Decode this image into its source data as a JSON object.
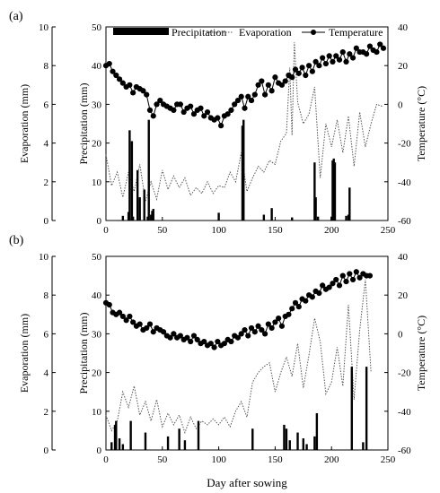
{
  "chart_data": [
    {
      "type": "bar",
      "panel_label": "(a)",
      "left_outer_axis": {
        "label": "Evaporation (mm)",
        "ticks": [
          0,
          2,
          4,
          6,
          8,
          10
        ],
        "ylim": [
          0,
          10
        ]
      },
      "left_inner_axis": {
        "label": "Precipitation (mm)",
        "ticks": [
          0,
          10,
          20,
          30,
          40,
          50
        ],
        "ylim": [
          0,
          50
        ]
      },
      "right_axis": {
        "label": "Temperature (°C)",
        "ticks": [
          -60,
          -40,
          -20,
          0,
          20,
          40
        ],
        "ylim": [
          -60,
          40
        ]
      },
      "x_axis": {
        "label": "",
        "ticks": [
          0,
          50,
          100,
          150,
          200,
          250
        ],
        "xlim": [
          0,
          250
        ]
      },
      "legend": {
        "placement": "top",
        "entries": [
          "Precipitation",
          "Evaporation",
          "Temperature"
        ]
      },
      "series": [
        {
          "name": "Precipitation",
          "kind": "bar",
          "axis": "precipitation",
          "x": [
            15,
            20,
            21,
            23,
            24,
            28,
            30,
            34,
            37,
            38,
            40,
            41,
            42,
            100,
            121,
            122,
            140,
            147,
            165,
            185,
            186,
            188,
            200,
            201,
            202,
            203,
            213,
            215,
            216
          ],
          "values": [
            1.2,
            2.2,
            23.3,
            20.5,
            1.0,
            13,
            6,
            8,
            1,
            26,
            1.5,
            2.5,
            3,
            2,
            24.5,
            26,
            1.5,
            3.2,
            0.8,
            15,
            6,
            1,
            1,
            15.5,
            16,
            15,
            1.2,
            1.5,
            8.5
          ]
        },
        {
          "name": "Evaporation",
          "kind": "dotted-line",
          "axis": "evaporation",
          "x": [
            0,
            5,
            10,
            15,
            20,
            25,
            30,
            35,
            40,
            45,
            50,
            55,
            60,
            65,
            70,
            75,
            80,
            85,
            90,
            95,
            100,
            105,
            110,
            115,
            120,
            125,
            130,
            135,
            140,
            145,
            150,
            155,
            160,
            163,
            165,
            167,
            170,
            175,
            180,
            185,
            190,
            195,
            200,
            205,
            210,
            215,
            220,
            225,
            230,
            235,
            240,
            245
          ],
          "values": [
            3.4,
            1.8,
            2.5,
            1.2,
            2.5,
            1.5,
            2.9,
            1.0,
            2.0,
            1.1,
            2.6,
            1.6,
            2.3,
            1.7,
            2.2,
            1.3,
            1.7,
            1.4,
            2.0,
            1.4,
            1.8,
            1.7,
            2.5,
            2.0,
            3.5,
            1.5,
            2.2,
            2.8,
            2.5,
            3.1,
            2.9,
            4.1,
            4.5,
            7.9,
            4.4,
            9.2,
            6.1,
            5.0,
            5.5,
            6.9,
            2.2,
            5.0,
            3.8,
            5.2,
            3.5,
            5.4,
            2.8,
            5.6,
            3.8,
            5.0,
            6.0,
            5.9
          ]
        },
        {
          "name": "Temperature",
          "kind": "line-markers",
          "axis": "temperature",
          "x": [
            0,
            3,
            6,
            9,
            12,
            15,
            18,
            21,
            24,
            27,
            30,
            33,
            36,
            39,
            42,
            45,
            48,
            51,
            54,
            57,
            60,
            63,
            66,
            69,
            72,
            75,
            78,
            81,
            84,
            87,
            90,
            93,
            96,
            99,
            102,
            105,
            108,
            111,
            114,
            117,
            120,
            123,
            126,
            129,
            132,
            135,
            138,
            141,
            144,
            147,
            150,
            153,
            156,
            159,
            162,
            165,
            168,
            171,
            174,
            177,
            180,
            183,
            186,
            189,
            192,
            195,
            198,
            201,
            204,
            207,
            210,
            213,
            216,
            219,
            222,
            225,
            228,
            231,
            234,
            237,
            240,
            243,
            246
          ],
          "values": [
            20,
            21,
            17,
            15,
            13,
            11,
            9,
            10,
            6,
            9,
            8,
            7,
            5,
            -3,
            -6,
            0,
            2,
            0,
            -1,
            -2,
            -3,
            0,
            0,
            -4,
            -2,
            -1,
            -5,
            -3,
            -2,
            -6,
            -4,
            -7,
            -8,
            -7,
            -11,
            -6,
            -5,
            -3,
            0,
            2,
            4,
            -2,
            4,
            2,
            5,
            10,
            12,
            5,
            10,
            7,
            14,
            11,
            10,
            12,
            15,
            14,
            18,
            16,
            19,
            15,
            20,
            17,
            22,
            20,
            24,
            21,
            25,
            22,
            25,
            23,
            27,
            22,
            26,
            24,
            29,
            27,
            27,
            26,
            30,
            28,
            27,
            31,
            29
          ]
        }
      ]
    },
    {
      "type": "bar",
      "panel_label": "(b)",
      "left_outer_axis": {
        "label": "Evaporation (mm)",
        "ticks": [
          0,
          2,
          4,
          6,
          8,
          10
        ],
        "ylim": [
          0,
          10
        ]
      },
      "left_inner_axis": {
        "label": "Precipitation (mm)",
        "ticks": [
          0,
          10,
          20,
          30,
          40,
          50
        ],
        "ylim": [
          0,
          50
        ]
      },
      "right_axis": {
        "label": "Temperature (°C)",
        "ticks": [
          -60,
          -40,
          -20,
          0,
          20,
          40
        ],
        "ylim": [
          -60,
          40
        ]
      },
      "x_axis": {
        "label": "Day after sowing",
        "ticks": [
          0,
          50,
          100,
          150,
          200,
          250
        ],
        "xlim": [
          0,
          250
        ]
      },
      "series": [
        {
          "name": "Precipitation",
          "kind": "bar",
          "axis": "precipitation",
          "x": [
            5,
            8,
            9,
            12,
            15,
            22,
            35,
            55,
            65,
            70,
            82,
            130,
            158,
            160,
            163,
            170,
            175,
            178,
            185,
            187,
            218,
            228,
            231
          ],
          "values": [
            2,
            6.5,
            7.5,
            3,
            1.5,
            7.5,
            4.5,
            3.5,
            5.5,
            2.5,
            7.5,
            5.5,
            6.5,
            5.5,
            2.5,
            4.5,
            3,
            1.5,
            3.5,
            9.5,
            21.5,
            2,
            21.5
          ]
        },
        {
          "name": "Evaporation",
          "kind": "dotted-line",
          "axis": "evaporation",
          "x": [
            0,
            5,
            10,
            15,
            20,
            25,
            30,
            35,
            40,
            45,
            50,
            55,
            60,
            65,
            70,
            75,
            80,
            85,
            90,
            95,
            100,
            105,
            110,
            115,
            120,
            125,
            130,
            135,
            140,
            145,
            150,
            155,
            160,
            165,
            170,
            175,
            180,
            185,
            190,
            195,
            200,
            205,
            210,
            215,
            220,
            225,
            230,
            235
          ],
          "values": [
            1.8,
            1.0,
            1.5,
            3.0,
            2.2,
            3.3,
            1.8,
            2.5,
            1.5,
            2.6,
            1.2,
            1.9,
            1.3,
            1.8,
            0.9,
            1.7,
            1.1,
            1.5,
            1.3,
            1.6,
            1.3,
            1.7,
            1.2,
            2.0,
            2.5,
            1.7,
            3.5,
            4.0,
            4.3,
            4.5,
            3.0,
            4.0,
            4.8,
            3.8,
            5.5,
            3.2,
            4.9,
            6.8,
            5.6,
            2.9,
            3.5,
            5.3,
            3.3,
            7.5,
            2.6,
            6.2,
            8.8,
            4.0
          ]
        },
        {
          "name": "Temperature",
          "kind": "line-markers",
          "axis": "temperature",
          "x": [
            0,
            3,
            6,
            9,
            12,
            15,
            18,
            21,
            24,
            27,
            30,
            33,
            36,
            39,
            42,
            45,
            48,
            51,
            54,
            57,
            60,
            63,
            66,
            69,
            72,
            75,
            78,
            81,
            84,
            87,
            90,
            93,
            96,
            99,
            102,
            105,
            108,
            111,
            114,
            117,
            120,
            123,
            126,
            129,
            132,
            135,
            138,
            141,
            144,
            147,
            150,
            153,
            156,
            159,
            162,
            165,
            168,
            171,
            174,
            177,
            180,
            183,
            186,
            189,
            192,
            195,
            198,
            201,
            204,
            207,
            210,
            213,
            216,
            219,
            222,
            225,
            228,
            231,
            234
          ],
          "values": [
            16,
            15,
            11,
            10,
            11,
            9,
            7,
            9,
            6,
            4,
            5,
            2,
            3,
            5,
            1,
            3,
            2,
            1,
            -1,
            -2,
            0,
            -2,
            -1,
            -3,
            -2,
            -4,
            -1,
            -3,
            -5,
            -4,
            -6,
            -5,
            -7,
            -4,
            -6,
            -5,
            -3,
            -4,
            -1,
            -2,
            0,
            2,
            -1,
            3,
            1,
            4,
            2,
            0,
            5,
            3,
            6,
            8,
            4,
            9,
            10,
            13,
            16,
            14,
            18,
            17,
            20,
            19,
            22,
            21,
            25,
            23,
            24,
            26,
            28,
            25,
            30,
            27,
            31,
            28,
            32,
            29,
            31,
            30,
            30
          ]
        }
      ]
    }
  ]
}
